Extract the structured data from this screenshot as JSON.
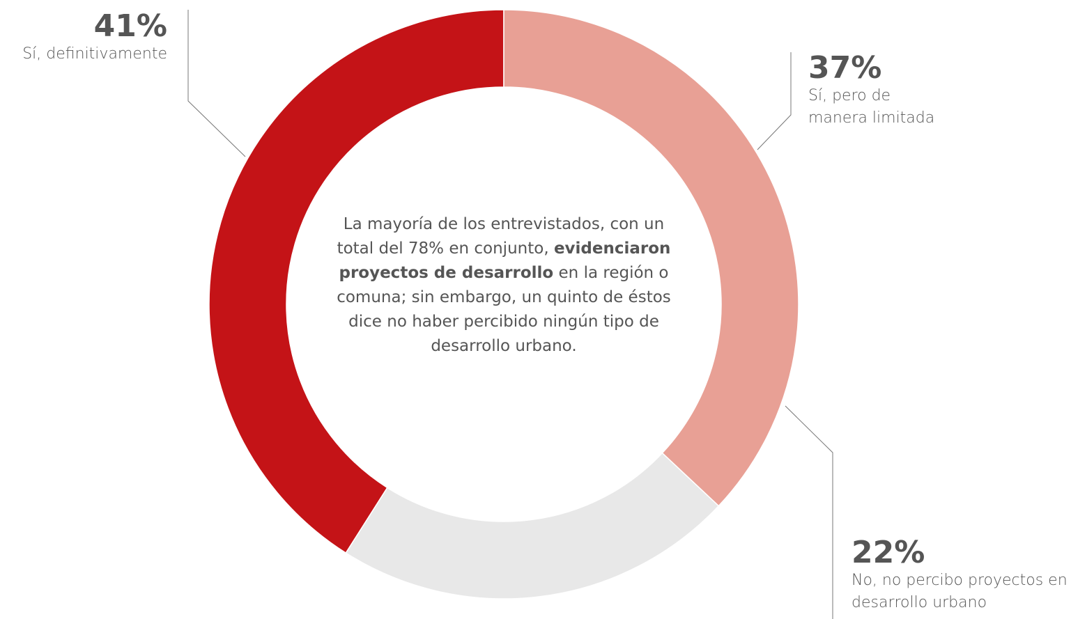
{
  "chart_data": {
    "type": "donut",
    "categories": [
      "Sí, pero de manera limitada",
      "No, no percibo proyectos en desarrollo urbano",
      "Sí, definitivamente"
    ],
    "values": [
      37,
      22,
      41
    ],
    "value_labels": [
      "37%",
      "22%",
      "41%"
    ],
    "colors": [
      "#e8a095",
      "#e8e8e8",
      "#c41317"
    ],
    "annotation": [
      "La mayoría de los entrevistados, con un total del 78% en conjunto, ",
      "evidenciaron proyectos de desarrollo",
      " en la región o comuna; sin embargo, un quinto de éstos dice no haber percibido ningún tipo de desarrollo urbano."
    ]
  }
}
